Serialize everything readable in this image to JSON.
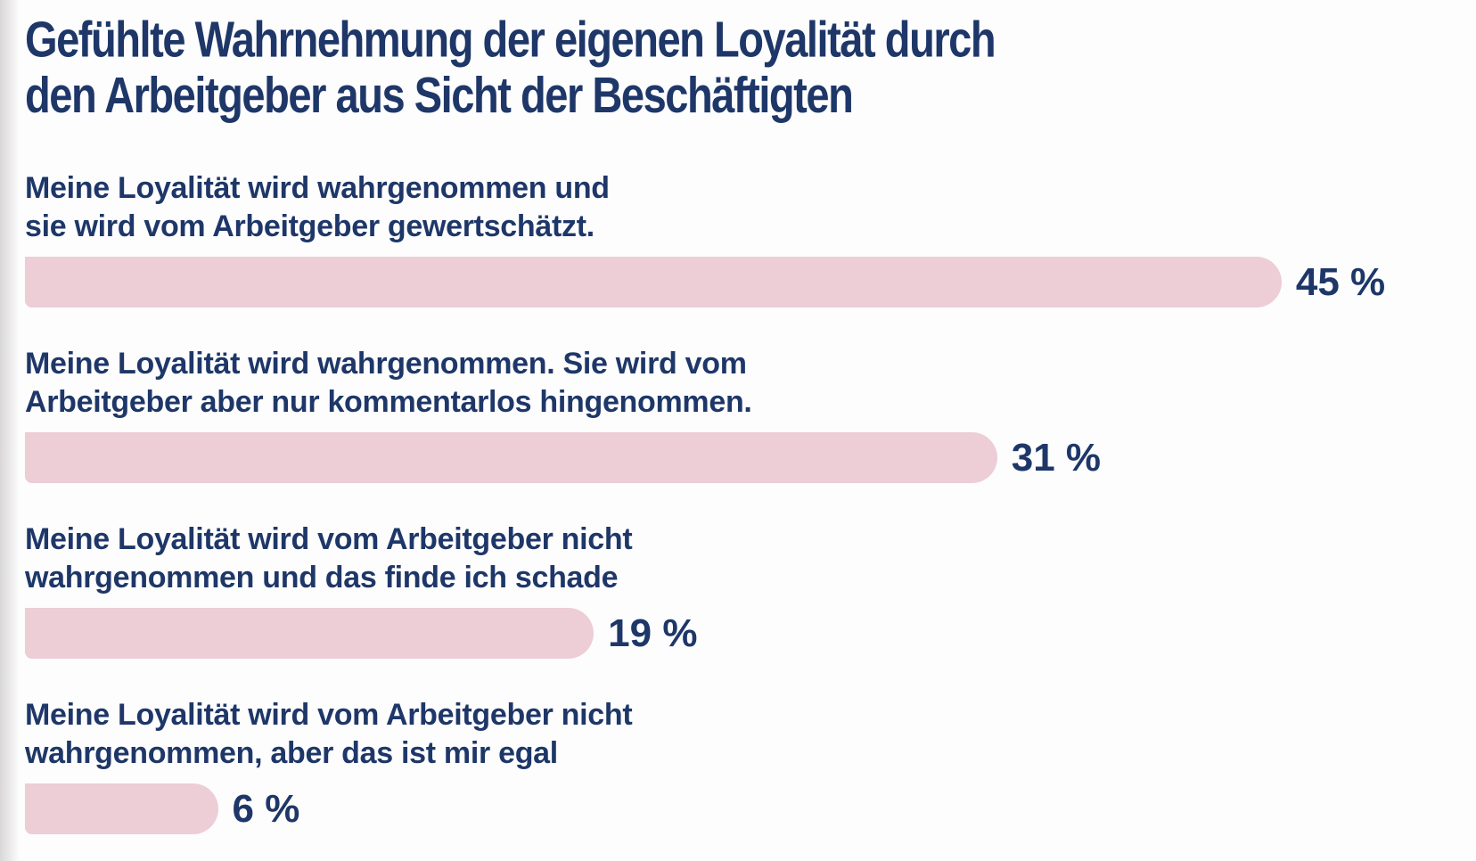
{
  "page": {
    "background": "#fdfdfe",
    "text_navy": "#1e3768",
    "bar_pink": "#edcdd6"
  },
  "chart_data": {
    "type": "bar",
    "orientation": "horizontal",
    "title": "Gefühlte Wahrnehmung der eigenen Loyalität durch den Arbeitgeber aus Sicht der Beschäftigten",
    "title_lines": [
      "Gefühlte Wahrnehmung der eigenen Loyalität durch",
      "den Arbeitgeber aus Sicht der Beschäftigten"
    ],
    "categories": [
      "Meine Loyalität wird wahrgenommen und sie wird vom Arbeitgeber gewertschätzt.",
      "Meine Loyalität wird wahrgenommen. Sie wird vom Arbeitgeber aber nur kommentarlos hingenommen.",
      "Meine Loyalität wird vom Arbeitgeber nicht wahrgenommen und das finde ich schade",
      "Meine Loyalität wird vom Arbeitgeber nicht wahrgenommen, aber das ist mir egal"
    ],
    "values": [
      45,
      31,
      19,
      6
    ],
    "unit": "%",
    "xlim": [
      0,
      50
    ],
    "grid": false,
    "legend": "none",
    "bar_color": "#edcdd6",
    "label_color": "#1e3768",
    "rows": [
      {
        "label_lines": [
          "Meine Loyalität wird wahrgenommen und",
          "sie wird vom Arbeitgeber gewertschätzt."
        ],
        "value": 45,
        "value_label": "45 %",
        "bar_width": "86.6%"
      },
      {
        "label_lines": [
          "Meine Loyalität wird wahrgenommen. Sie wird vom",
          "Arbeitgeber aber nur kommentarlos hingenommen."
        ],
        "value": 31,
        "value_label": "31 %",
        "bar_width": "67.0%"
      },
      {
        "label_lines": [
          "Meine Loyalität wird vom Arbeitgeber nicht",
          "wahrgenommen und das finde ich schade"
        ],
        "value": 19,
        "value_label": "19 %",
        "bar_width": "39.2%"
      },
      {
        "label_lines": [
          "Meine Loyalität wird vom Arbeitgeber nicht",
          "wahrgenommen, aber das ist mir egal"
        ],
        "value": 6,
        "value_label": "6 %",
        "bar_width": "13.3%"
      }
    ]
  }
}
